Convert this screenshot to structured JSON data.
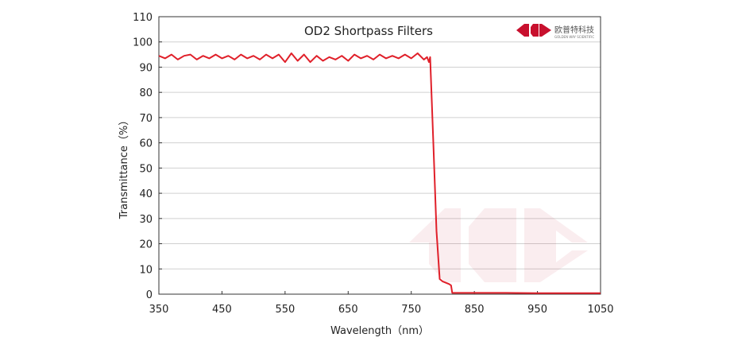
{
  "chart_data": {
    "type": "line",
    "title": "OD2  Shortpass Filters",
    "xlabel": "Wavelength（nm）",
    "ylabel": "Transmittance（%）",
    "xlim": [
      350,
      1050
    ],
    "ylim": [
      0,
      110
    ],
    "xticks": [
      350,
      450,
      550,
      650,
      750,
      850,
      950,
      1050
    ],
    "yticks": [
      0,
      10,
      20,
      30,
      40,
      50,
      60,
      70,
      80,
      90,
      100,
      110
    ],
    "grid": true,
    "legend": "none",
    "series": [
      {
        "color": "#e0202a",
        "x": [
          350,
          360,
          370,
          380,
          390,
          400,
          410,
          420,
          430,
          440,
          450,
          460,
          470,
          480,
          490,
          500,
          510,
          520,
          530,
          540,
          550,
          560,
          570,
          580,
          590,
          600,
          610,
          620,
          630,
          640,
          650,
          660,
          670,
          680,
          690,
          700,
          710,
          720,
          730,
          740,
          750,
          760,
          770,
          775,
          778,
          780,
          785,
          790,
          795,
          800,
          805,
          810,
          813,
          815,
          820,
          850,
          900,
          950,
          1000,
          1050
        ],
        "y": [
          94.5,
          93.5,
          95,
          93,
          94.5,
          95,
          93,
          94.5,
          93.5,
          95,
          93.5,
          94.5,
          93,
          95,
          93.5,
          94.5,
          93,
          95,
          93.5,
          95,
          92,
          95.5,
          92.5,
          95,
          92,
          94.5,
          92.5,
          94,
          93,
          94.5,
          92.5,
          95,
          93.5,
          94.5,
          93,
          95,
          93.5,
          94.5,
          93.5,
          95,
          93.5,
          95.5,
          93,
          94,
          92,
          94,
          60,
          25,
          6,
          5,
          4.5,
          4,
          3.5,
          0.5,
          0.5,
          0.5,
          0.5,
          0.4,
          0.4,
          0.4
        ]
      }
    ]
  },
  "logo": {
    "name_cn": "欧普特科技",
    "name_en": "GOLDEN WAY SCIENTIFIC"
  }
}
